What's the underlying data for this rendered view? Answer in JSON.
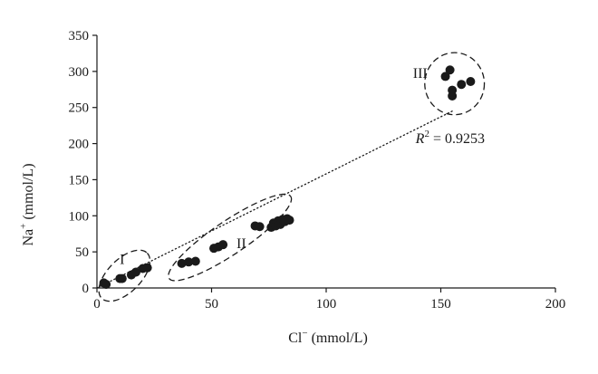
{
  "chart_data": {
    "type": "scatter",
    "xlabel": {
      "base": "Cl",
      "sup": "−",
      "unit": " (mmol/L)"
    },
    "ylabel": {
      "base": "Na",
      "sup": "+",
      "unit": " (mmol/L)"
    },
    "xlim": [
      0,
      200
    ],
    "ylim": [
      0,
      350
    ],
    "x_ticks": [
      0,
      50,
      100,
      150,
      200
    ],
    "y_ticks": [
      0,
      50,
      100,
      150,
      200,
      250,
      300,
      350
    ],
    "grid": false,
    "colors": {
      "points": "#1a1a1a",
      "axes": "#1a1a1a"
    },
    "points": [
      {
        "x": 3,
        "y": 7
      },
      {
        "x": 4,
        "y": 5
      },
      {
        "x": 10,
        "y": 13
      },
      {
        "x": 11,
        "y": 13
      },
      {
        "x": 15,
        "y": 18
      },
      {
        "x": 17,
        "y": 22
      },
      {
        "x": 20,
        "y": 27
      },
      {
        "x": 22,
        "y": 28
      },
      {
        "x": 37,
        "y": 34
      },
      {
        "x": 40,
        "y": 36
      },
      {
        "x": 43,
        "y": 37
      },
      {
        "x": 51,
        "y": 55
      },
      {
        "x": 53,
        "y": 57
      },
      {
        "x": 55,
        "y": 60
      },
      {
        "x": 69,
        "y": 86
      },
      {
        "x": 71,
        "y": 85
      },
      {
        "x": 76,
        "y": 84
      },
      {
        "x": 77,
        "y": 90
      },
      {
        "x": 78,
        "y": 86
      },
      {
        "x": 79,
        "y": 93
      },
      {
        "x": 80,
        "y": 88
      },
      {
        "x": 81,
        "y": 95
      },
      {
        "x": 82,
        "y": 92
      },
      {
        "x": 83,
        "y": 96
      },
      {
        "x": 84,
        "y": 94
      },
      {
        "x": 152,
        "y": 293
      },
      {
        "x": 154,
        "y": 302
      },
      {
        "x": 155,
        "y": 274
      },
      {
        "x": 155,
        "y": 266
      },
      {
        "x": 159,
        "y": 282
      },
      {
        "x": 163,
        "y": 286
      }
    ],
    "trendline": {
      "style": "dotted",
      "x": [
        0,
        155
      ],
      "y": [
        0,
        245
      ]
    },
    "r_squared_label": {
      "r": "R",
      "sup": "2",
      "rest": " = 0.9253",
      "x": 139,
      "y": 201
    },
    "groups": [
      {
        "label": "I",
        "label_x": 11,
        "label_y": 33,
        "cx": 12,
        "cy": 17,
        "rx": 14,
        "ry": 23,
        "angle": 45
      },
      {
        "label": "II",
        "label_x": 63,
        "label_y": 55,
        "cx": 58,
        "cy": 70,
        "rx": 32,
        "ry": 23,
        "angle": 34
      },
      {
        "label": "III",
        "label_x": 141,
        "label_y": 291,
        "cx": 156,
        "cy": 283,
        "rx": 13,
        "ry": 43,
        "angle": 0
      }
    ]
  }
}
